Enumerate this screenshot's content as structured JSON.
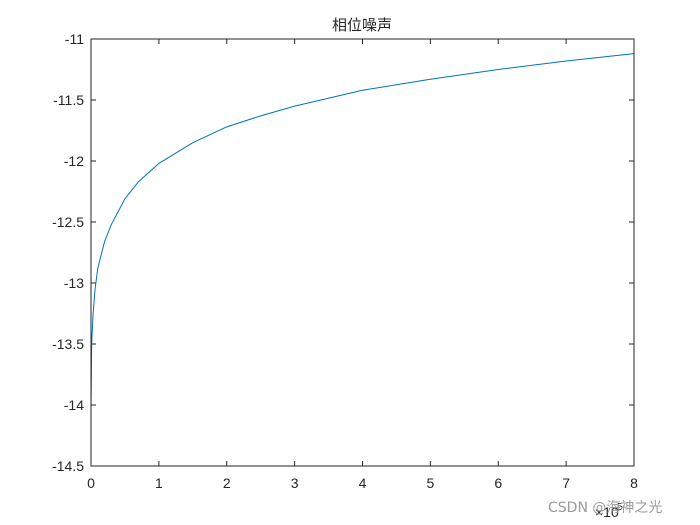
{
  "chart_data": {
    "type": "line",
    "title": "相位噪声",
    "xlabel": "",
    "ylabel": "",
    "xlim": [
      0,
      8
    ],
    "ylim": [
      -14.5,
      -11
    ],
    "x_exponent_label": "×10",
    "x_exponent": "5",
    "xticks": [
      0,
      1,
      2,
      3,
      4,
      5,
      6,
      7,
      8
    ],
    "yticks": [
      -11,
      -11.5,
      -12,
      -12.5,
      -13,
      -13.5,
      -14,
      -14.5
    ],
    "xtick_labels": [
      "0",
      "1",
      "2",
      "3",
      "4",
      "5",
      "6",
      "7",
      "8"
    ],
    "ytick_labels": [
      "-11",
      "-11.5",
      "-12",
      "-12.5",
      "-13",
      "-13.5",
      "-14",
      "-14.5"
    ],
    "grid": false,
    "series": [
      {
        "color": "#0072BD",
        "x": [
          0.001,
          0.01,
          0.03,
          0.06,
          0.1,
          0.2,
          0.3,
          0.5,
          0.7,
          1.0,
          1.5,
          2.0,
          2.5,
          3.0,
          4.0,
          5.0,
          6.0,
          7.0,
          8.0
        ],
        "y": [
          -14.0,
          -13.5,
          -13.26,
          -13.05,
          -12.88,
          -12.66,
          -12.52,
          -12.31,
          -12.17,
          -12.02,
          -11.85,
          -11.72,
          -11.63,
          -11.55,
          -11.42,
          -11.33,
          -11.25,
          -11.18,
          -11.12
        ]
      }
    ]
  },
  "watermark": "CSDN @海神之光",
  "colors": {
    "axis": "#262626",
    "line": "#0072BD"
  }
}
